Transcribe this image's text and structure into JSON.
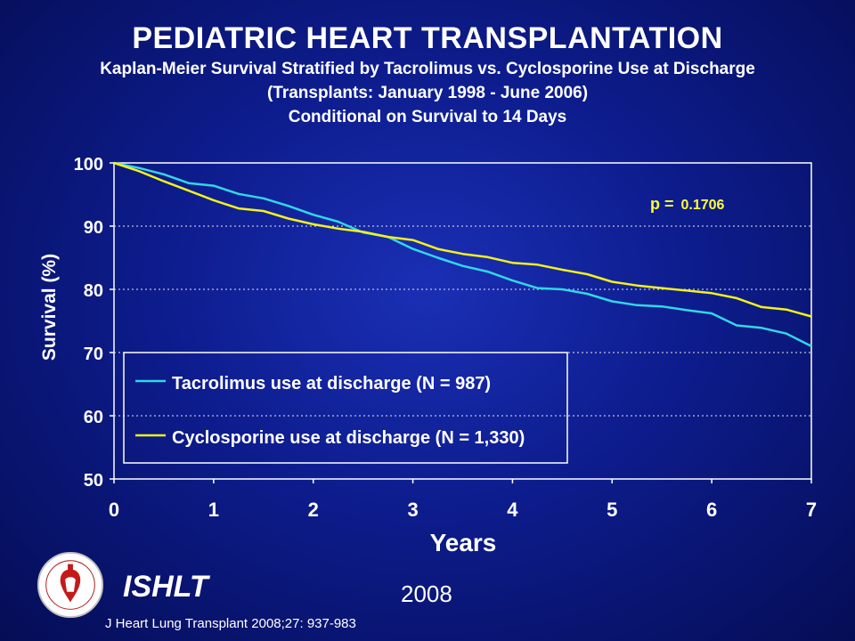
{
  "slide": {
    "title": "PEDIATRIC HEART TRANSPLANTATION",
    "subtitle_lines": [
      "Kaplan-Meier Survival Stratified by Tacrolimus vs. Cyclosporine Use at Discharge",
      "(Transplants: January 1998 - June 2006)",
      "Conditional on Survival to 14 Days"
    ],
    "org": "ISHLT",
    "year": "2008",
    "citation": "J Heart Lung Transplant 2008;27: 937-983"
  },
  "colors": {
    "tacrolimus": "#33d6e6",
    "cyclosporine": "#f2f21a",
    "pvalue": "#ffff33",
    "plot_border": "#ffffff"
  },
  "chart_data": {
    "type": "line",
    "xlabel": "Years",
    "ylabel": "Survival (%)",
    "xlim": [
      0,
      7
    ],
    "ylim": [
      50,
      100
    ],
    "x_ticks": [
      "0",
      "1",
      "2",
      "3",
      "4",
      "5",
      "6",
      "7"
    ],
    "y_ticks": [
      "50",
      "60",
      "70",
      "80",
      "90",
      "100"
    ],
    "grid": "horizontal dashed",
    "legend_position": "bottom-left",
    "annotation": {
      "label": "p =",
      "value": "0.1706"
    },
    "series": [
      {
        "name": "Tacrolimus use at discharge (N = 987)",
        "x": [
          0,
          0.25,
          0.5,
          0.75,
          1,
          1.25,
          1.5,
          1.75,
          2,
          2.25,
          2.5,
          2.75,
          3,
          3.25,
          3.5,
          3.75,
          4,
          4.25,
          4.5,
          4.75,
          5,
          5.25,
          5.5,
          5.75,
          6,
          6.25,
          6.5,
          6.75,
          7
        ],
        "y": [
          100,
          99.2,
          98.2,
          96.8,
          96.4,
          95.1,
          94.4,
          93.2,
          91.8,
          90.7,
          89.0,
          88.3,
          86.4,
          85.0,
          83.7,
          82.8,
          81.4,
          80.2,
          80.0,
          79.3,
          78.1,
          77.5,
          77.3,
          76.7,
          76.2,
          74.3,
          73.9,
          73.0,
          71.0
        ]
      },
      {
        "name": "Cyclosporine use at discharge (N = 1,330)",
        "x": [
          0,
          0.25,
          0.5,
          0.75,
          1,
          1.25,
          1.5,
          1.75,
          2,
          2.25,
          2.5,
          2.75,
          3,
          3.25,
          3.5,
          3.75,
          4,
          4.25,
          4.5,
          4.75,
          5,
          5.25,
          5.5,
          5.75,
          6,
          6.25,
          6.5,
          6.75,
          7
        ],
        "y": [
          100,
          98.7,
          97.1,
          95.6,
          94.1,
          92.8,
          92.4,
          91.2,
          90.3,
          89.6,
          89.1,
          88.3,
          87.8,
          86.4,
          85.6,
          85.1,
          84.2,
          83.9,
          83.1,
          82.4,
          81.2,
          80.6,
          80.2,
          79.8,
          79.4,
          78.6,
          77.2,
          76.8,
          75.7
        ]
      }
    ]
  }
}
